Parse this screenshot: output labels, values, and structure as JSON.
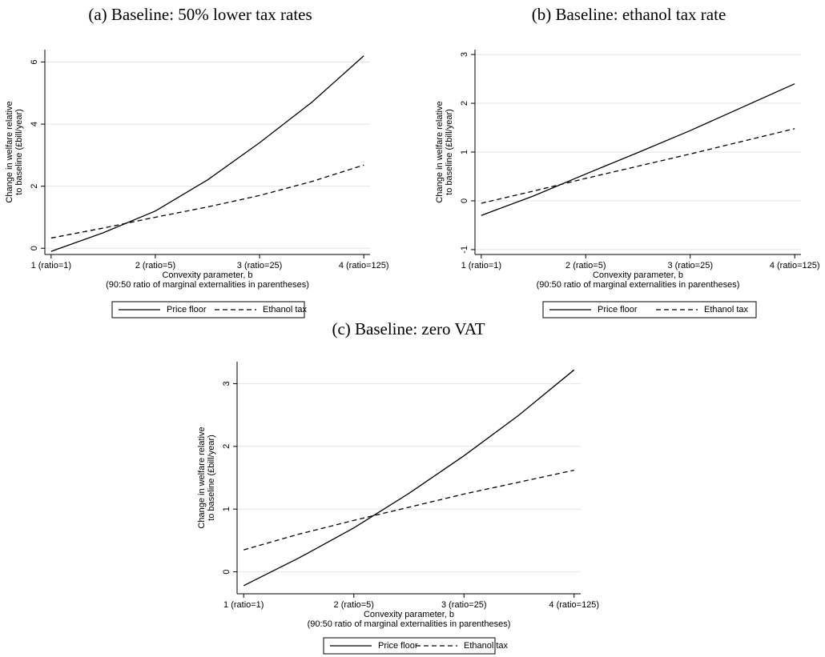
{
  "chart_data": [
    {
      "type": "line",
      "title": "(a) Baseline: 50% lower tax rates",
      "xlabel": [
        "Convexity parameter, b",
        "(90:50 ratio of marginal externalities in parentheses)"
      ],
      "ylabel": [
        "Change in welfare relative",
        "to baseline (£bill/year)"
      ],
      "x": [
        1,
        1.5,
        2,
        2.5,
        3,
        3.5,
        4
      ],
      "xlim": [
        0.94,
        4.06
      ],
      "xticks": [
        {
          "value": 1,
          "label": "1 (ratio=1)"
        },
        {
          "value": 2,
          "label": "2 (ratio=5)"
        },
        {
          "value": 3,
          "label": "3 (ratio=25)"
        },
        {
          "value": 4,
          "label": "4 (ratio=125)"
        }
      ],
      "ylim": [
        -0.2,
        6.4
      ],
      "yticks": [
        0,
        2,
        4,
        6
      ],
      "grid": true,
      "legend": "bottom",
      "series": [
        {
          "name": "Price floor",
          "color": "#000000",
          "style": "solid",
          "values": [
            -0.1,
            0.5,
            1.2,
            2.2,
            3.4,
            4.7,
            6.2
          ]
        },
        {
          "name": "Ethanol tax",
          "color": "#000000",
          "style": "dashed",
          "values": [
            0.33,
            0.65,
            1.0,
            1.33,
            1.7,
            2.15,
            2.68
          ]
        }
      ]
    },
    {
      "type": "line",
      "title": "(b) Baseline: ethanol tax rate",
      "xlabel": [
        "Convexity parameter, b",
        "(90:50 ratio of marginal externalities in parentheses)"
      ],
      "ylabel": [
        "Change in welfare relative",
        "to baseline (£bill/year)"
      ],
      "x": [
        1,
        1.5,
        2,
        2.5,
        3,
        3.5,
        4
      ],
      "xlim": [
        0.94,
        4.06
      ],
      "xticks": [
        {
          "value": 1,
          "label": "1 (ratio=1)"
        },
        {
          "value": 2,
          "label": "2 (ratio=5)"
        },
        {
          "value": 3,
          "label": "3 (ratio=25)"
        },
        {
          "value": 4,
          "label": "4 (ratio=125)"
        }
      ],
      "ylim": [
        -1.1,
        3.1
      ],
      "yticks": [
        -1,
        0,
        1,
        2,
        3
      ],
      "grid": true,
      "legend": "bottom",
      "series": [
        {
          "name": "Price floor",
          "color": "#000000",
          "style": "solid",
          "values": [
            -0.3,
            0.1,
            0.55,
            0.99,
            1.44,
            1.92,
            2.4
          ]
        },
        {
          "name": "Ethanol tax",
          "color": "#000000",
          "style": "dashed",
          "values": [
            -0.05,
            0.2,
            0.46,
            0.71,
            0.96,
            1.22,
            1.48
          ]
        }
      ]
    },
    {
      "type": "line",
      "title": "(c) Baseline: zero VAT",
      "xlabel": [
        "Convexity parameter, b",
        "(90:50 ratio of marginal externalities in parentheses)"
      ],
      "ylabel": [
        "Change in welfare relative",
        "to baseline (£bill/year)"
      ],
      "x": [
        1,
        1.5,
        2,
        2.5,
        3,
        3.5,
        4
      ],
      "xlim": [
        0.94,
        4.06
      ],
      "xticks": [
        {
          "value": 1,
          "label": "1 (ratio=1)"
        },
        {
          "value": 2,
          "label": "2 (ratio=5)"
        },
        {
          "value": 3,
          "label": "3 (ratio=25)"
        },
        {
          "value": 4,
          "label": "4 (ratio=125)"
        }
      ],
      "ylim": [
        -0.35,
        3.35
      ],
      "yticks": [
        0,
        1,
        2,
        3
      ],
      "grid": true,
      "legend": "bottom",
      "series": [
        {
          "name": "Price floor",
          "color": "#000000",
          "style": "solid",
          "values": [
            -0.22,
            0.22,
            0.7,
            1.25,
            1.85,
            2.5,
            3.22
          ]
        },
        {
          "name": "Ethanol tax",
          "color": "#000000",
          "style": "dashed",
          "values": [
            0.35,
            0.6,
            0.82,
            1.03,
            1.24,
            1.43,
            1.62
          ]
        }
      ]
    }
  ]
}
